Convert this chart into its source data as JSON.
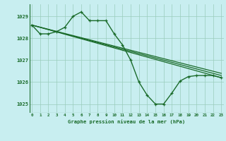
{
  "bg_color": "#c8eef0",
  "grid_color": "#99ccbb",
  "line_color": "#1a6b2a",
  "border_color": "#1a6b2a",
  "title": "Graphe pression niveau de la mer (hPa)",
  "ylabel_ticks": [
    1025,
    1026,
    1027,
    1028,
    1029
  ],
  "xlim": [
    -0.3,
    23.3
  ],
  "ylim": [
    1024.6,
    1029.55
  ],
  "series": [
    {
      "x": [
        0,
        1,
        2,
        3,
        4,
        5,
        6,
        7,
        8,
        9,
        10,
        11,
        12,
        13,
        14,
        15,
        16,
        17,
        18,
        19,
        20,
        21,
        22,
        23
      ],
      "y": [
        1028.6,
        1028.2,
        1028.2,
        1028.3,
        1028.5,
        1029.0,
        1029.2,
        1028.8,
        1028.8,
        1028.8,
        1028.2,
        1027.7,
        1027.0,
        1026.0,
        1025.4,
        1025.0,
        1025.0,
        1025.5,
        1026.05,
        1026.25,
        1026.3,
        1026.3,
        1026.3,
        1026.2
      ],
      "marker": true,
      "lw": 1.0
    },
    {
      "x": [
        0,
        23
      ],
      "y": [
        1028.6,
        1026.2
      ],
      "marker": false,
      "lw": 0.9
    },
    {
      "x": [
        0,
        23
      ],
      "y": [
        1028.6,
        1026.3
      ],
      "marker": false,
      "lw": 0.9
    },
    {
      "x": [
        0,
        23
      ],
      "y": [
        1028.6,
        1026.4
      ],
      "marker": false,
      "lw": 0.9
    }
  ]
}
